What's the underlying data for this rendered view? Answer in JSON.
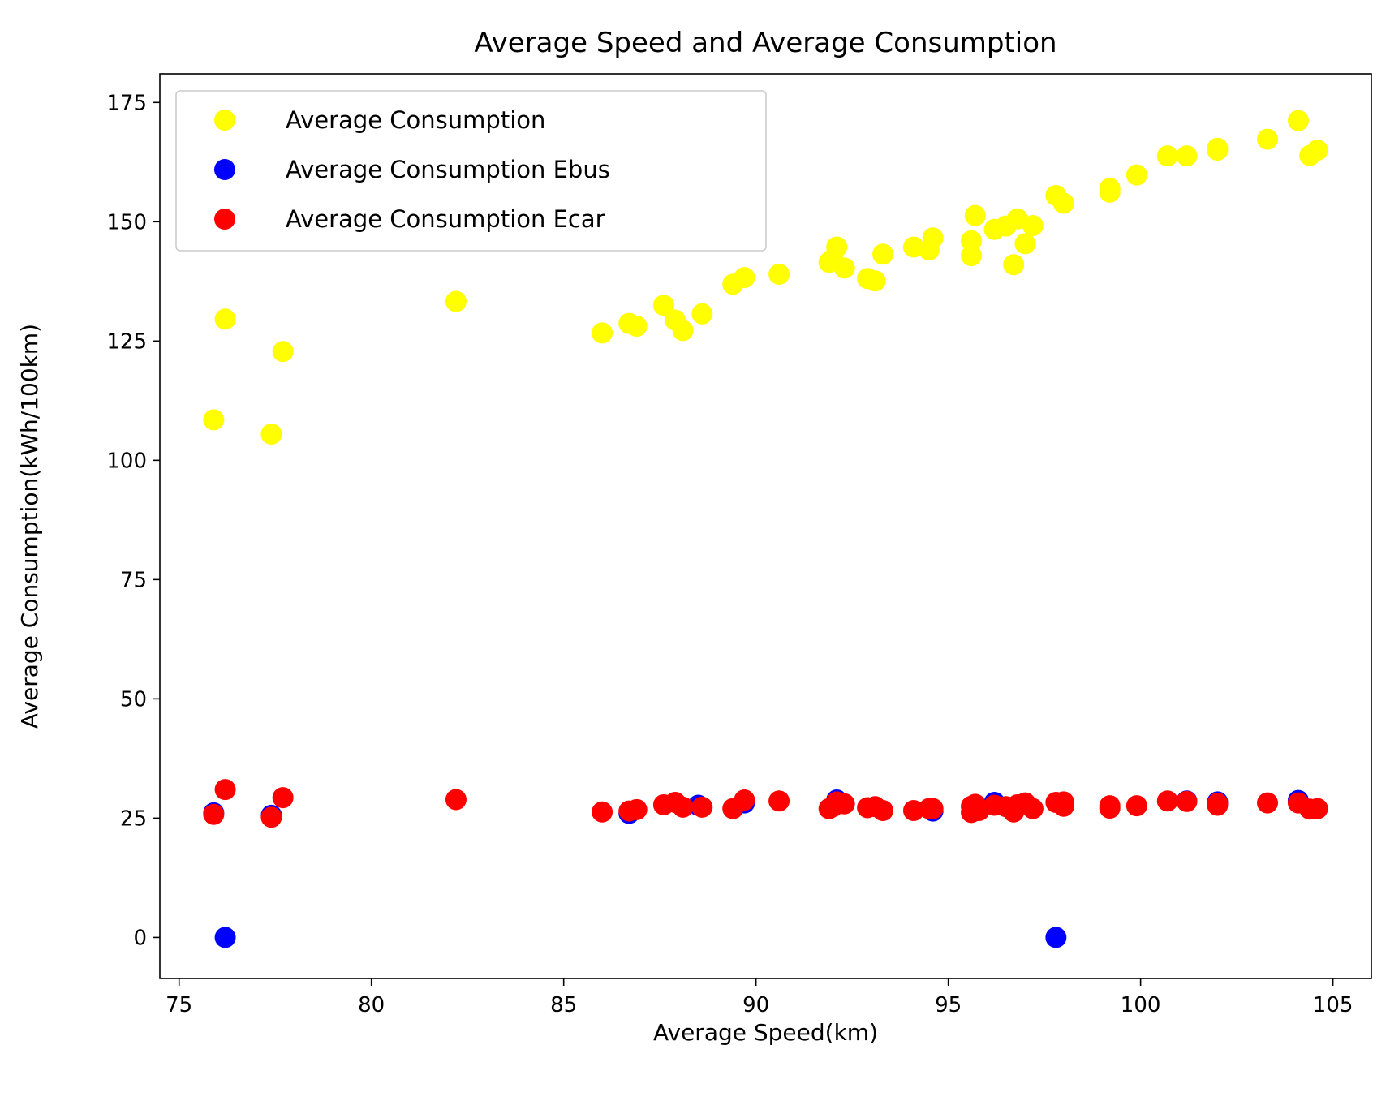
{
  "chart_data": {
    "type": "scatter",
    "title": "Average Speed and Average Consumption",
    "xlabel": "Average Speed(km)",
    "ylabel": "Average Consumption(kWh/100km)",
    "xlim": [
      74.5,
      106.0
    ],
    "ylim": [
      -8.6,
      181.0
    ],
    "xticks": [
      75,
      80,
      85,
      90,
      95,
      100,
      105
    ],
    "yticks": [
      0,
      25,
      50,
      75,
      100,
      125,
      150,
      175
    ],
    "grid": false,
    "legend_position": "top-left",
    "series": [
      {
        "name": "Average Consumption",
        "color": "#ffff00",
        "points": [
          [
            75.9,
            108.5
          ],
          [
            76.2,
            129.6
          ],
          [
            77.4,
            105.5
          ],
          [
            77.7,
            122.8
          ],
          [
            82.2,
            133.3
          ],
          [
            86.0,
            126.7
          ],
          [
            86.7,
            128.7
          ],
          [
            86.9,
            128.1
          ],
          [
            87.6,
            132.5
          ],
          [
            87.9,
            129.4
          ],
          [
            88.1,
            127.2
          ],
          [
            88.6,
            130.7
          ],
          [
            89.4,
            136.9
          ],
          [
            89.7,
            138.3
          ],
          [
            90.6,
            139.0
          ],
          [
            91.9,
            141.5
          ],
          [
            92.0,
            142.2
          ],
          [
            92.1,
            144.7
          ],
          [
            92.3,
            140.3
          ],
          [
            92.9,
            138.1
          ],
          [
            93.1,
            137.6
          ],
          [
            93.3,
            143.2
          ],
          [
            94.1,
            144.7
          ],
          [
            94.5,
            144.1
          ],
          [
            94.6,
            146.6
          ],
          [
            95.6,
            142.9
          ],
          [
            95.6,
            146.0
          ],
          [
            95.7,
            151.3
          ],
          [
            96.2,
            148.4
          ],
          [
            96.5,
            149.1
          ],
          [
            96.7,
            141.0
          ],
          [
            96.8,
            150.6
          ],
          [
            97.0,
            145.4
          ],
          [
            97.2,
            149.2
          ],
          [
            97.8,
            155.5
          ],
          [
            98.0,
            153.9
          ],
          [
            99.2,
            156.2
          ],
          [
            99.2,
            157.0
          ],
          [
            99.9,
            159.8
          ],
          [
            100.7,
            163.8
          ],
          [
            101.2,
            163.8
          ],
          [
            102.0,
            165.0
          ],
          [
            102.0,
            165.4
          ],
          [
            103.3,
            167.3
          ],
          [
            104.1,
            171.2
          ],
          [
            104.4,
            163.9
          ],
          [
            104.6,
            165.0
          ]
        ]
      },
      {
        "name": "Average Consumption Ebus",
        "color": "#0000ff",
        "points": [
          [
            75.9,
            26.1
          ],
          [
            76.2,
            0.0
          ],
          [
            77.4,
            25.6
          ],
          [
            86.7,
            26.0
          ],
          [
            88.5,
            27.7
          ],
          [
            89.7,
            28.2
          ],
          [
            92.1,
            28.8
          ],
          [
            94.6,
            26.5
          ],
          [
            96.2,
            28.3
          ],
          [
            97.8,
            0.0
          ],
          [
            101.2,
            28.6
          ],
          [
            102.0,
            28.4
          ],
          [
            104.1,
            28.7
          ]
        ]
      },
      {
        "name": "Average Consumption Ecar",
        "color": "#ff0000",
        "points": [
          [
            75.9,
            25.8
          ],
          [
            76.2,
            31.0
          ],
          [
            77.4,
            25.2
          ],
          [
            77.7,
            29.3
          ],
          [
            82.2,
            28.9
          ],
          [
            86.0,
            26.3
          ],
          [
            86.7,
            26.5
          ],
          [
            86.9,
            26.8
          ],
          [
            87.6,
            27.8
          ],
          [
            87.9,
            28.3
          ],
          [
            88.1,
            27.3
          ],
          [
            88.6,
            27.3
          ],
          [
            89.4,
            27.0
          ],
          [
            89.7,
            28.8
          ],
          [
            90.6,
            28.6
          ],
          [
            91.9,
            27.0
          ],
          [
            92.0,
            27.4
          ],
          [
            92.1,
            28.4
          ],
          [
            92.3,
            28.0
          ],
          [
            92.9,
            27.2
          ],
          [
            93.1,
            27.4
          ],
          [
            93.3,
            26.6
          ],
          [
            94.1,
            26.6
          ],
          [
            94.5,
            27.0
          ],
          [
            94.6,
            27.0
          ],
          [
            95.6,
            26.2
          ],
          [
            95.6,
            27.5
          ],
          [
            95.7,
            27.9
          ],
          [
            95.8,
            26.6
          ],
          [
            96.2,
            27.7
          ],
          [
            96.5,
            27.4
          ],
          [
            96.7,
            26.3
          ],
          [
            96.8,
            27.8
          ],
          [
            97.0,
            28.2
          ],
          [
            97.2,
            27.0
          ],
          [
            97.8,
            28.3
          ],
          [
            98.0,
            28.4
          ],
          [
            98.0,
            27.5
          ],
          [
            99.2,
            27.6
          ],
          [
            99.2,
            27.1
          ],
          [
            99.9,
            27.6
          ],
          [
            100.7,
            28.6
          ],
          [
            101.2,
            28.5
          ],
          [
            102.0,
            28.1
          ],
          [
            102.0,
            27.7
          ],
          [
            103.3,
            28.2
          ],
          [
            104.1,
            28.2
          ],
          [
            104.4,
            26.9
          ],
          [
            104.6,
            27.0
          ]
        ]
      }
    ]
  }
}
